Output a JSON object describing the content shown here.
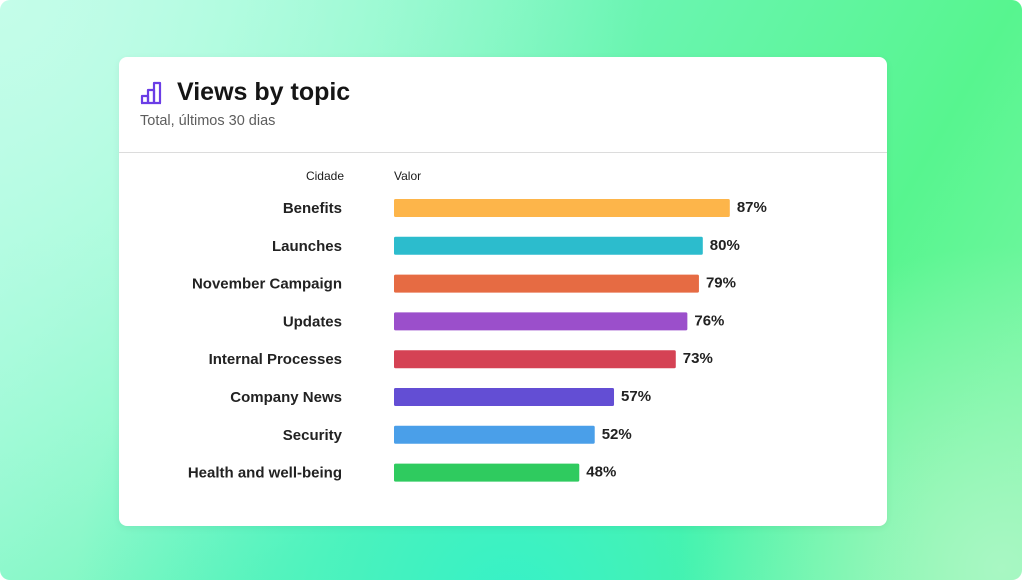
{
  "card": {
    "title": "Views by topic",
    "subtitle": "Total, últimos 30 dias",
    "icon": "bar-chart-icon",
    "icon_color": "#6b3de6"
  },
  "chart_data": {
    "type": "bar",
    "orientation": "horizontal",
    "column_headers": {
      "category": "Cidade",
      "value": "Valor"
    },
    "unit": "%",
    "categories": [
      "Benefits",
      "Launches",
      "November Campaign",
      "Updates",
      "Internal Processes",
      "Company News",
      "Security",
      "Health and well-being"
    ],
    "values": [
      87,
      80,
      79,
      76,
      73,
      57,
      52,
      48
    ],
    "value_labels": [
      "87%",
      "80%",
      "79%",
      "76%",
      "73%",
      "57%",
      "52%",
      "48%"
    ],
    "colors": [
      "#fdb54a",
      "#2cbccd",
      "#e66b43",
      "#9b4fcb",
      "#d54254",
      "#634ed4",
      "#4a9fe9",
      "#2fcb5f"
    ],
    "xlim": [
      0,
      100
    ],
    "grid": false,
    "legend": "none"
  }
}
